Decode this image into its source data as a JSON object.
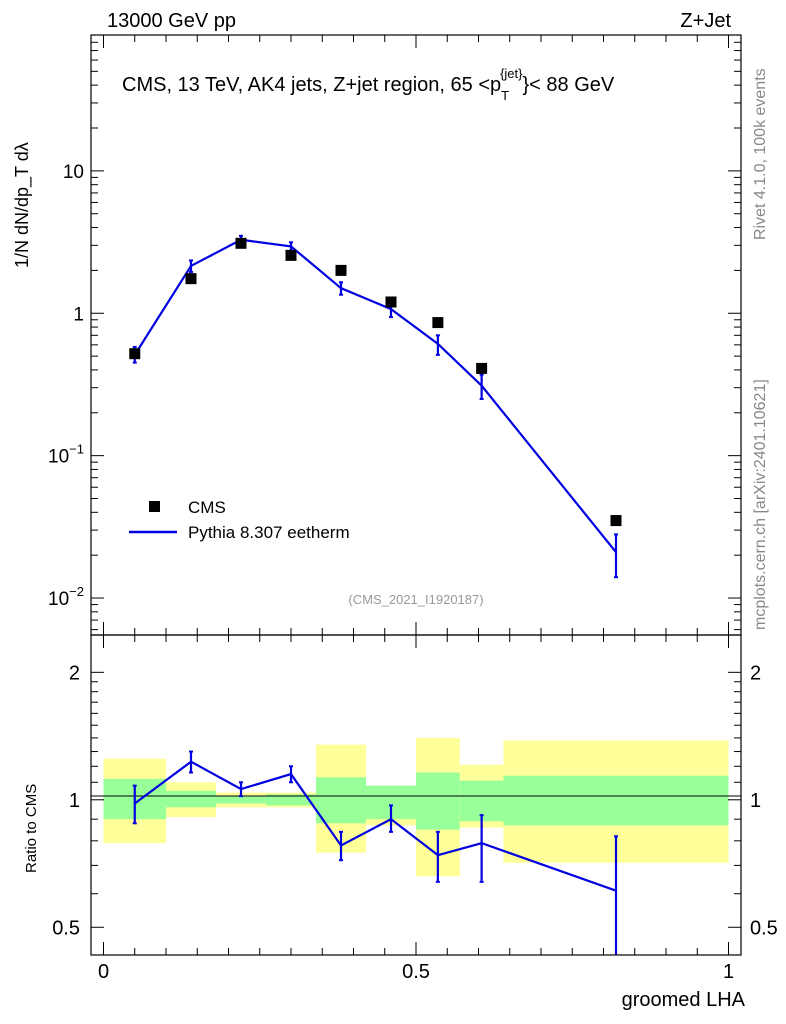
{
  "header": {
    "left": "13000 GeV pp",
    "right": "Z+Jet"
  },
  "main_plot": {
    "title": "CMS, 13 TeV, AK4 jets, Z+jet region, 65 <p",
    "title_sup": "{jet}",
    "title_sub": "T",
    "title_end": "}< 88 GeV",
    "ylabel": "1/N dN/dp_T dλ",
    "y_ticks": [
      {
        "base": "10",
        "exp": "−2",
        "v": 0.01
      },
      {
        "base": "10",
        "exp": "−1",
        "v": 0.1
      },
      {
        "base": "1",
        "exp": "",
        "v": 1
      },
      {
        "base": "10",
        "exp": "",
        "v": 10
      }
    ],
    "watermark": "(CMS_2021_I1920187)"
  },
  "legend": {
    "data_label": "CMS",
    "mc_label": "Pythia 8.307 eetherm"
  },
  "side_labels": {
    "top": "Rivet 4.1.0,  100k events",
    "bottom": "mcplots.cern.ch [arXiv:2401.10621]"
  },
  "ratio_plot": {
    "ylabel": "Ratio to CMS",
    "y_ticks": [
      "0.5",
      "1",
      "2"
    ],
    "x_ticks": [
      "0",
      "0.5",
      "1"
    ],
    "xlabel": "groomed LHA"
  },
  "colors": {
    "mc": "#0000e0",
    "band_inner": "#99ff99",
    "band_outer": "#ffff99",
    "data": "#000000"
  },
  "chart_data": {
    "type": "line",
    "title": "CMS, 13 TeV, AK4 jets, Z+jet region, 65 < pT jet < 88 GeV",
    "xlabel": "groomed LHA",
    "ylabel": "1/N dN/dpT dλ",
    "xlim": [
      -0.02,
      1.02
    ],
    "ylim": [
      0.0055,
      90
    ],
    "yscale": "log",
    "bins": [
      [
        0.0,
        0.1
      ],
      [
        0.1,
        0.18
      ],
      [
        0.18,
        0.26
      ],
      [
        0.26,
        0.34
      ],
      [
        0.34,
        0.42
      ],
      [
        0.42,
        0.5
      ],
      [
        0.5,
        0.57
      ],
      [
        0.57,
        0.64
      ],
      [
        0.64,
        1.0
      ]
    ],
    "series": [
      {
        "name": "CMS",
        "x": [
          0.05,
          0.14,
          0.22,
          0.3,
          0.38,
          0.46,
          0.535,
          0.605,
          0.82
        ],
        "values": [
          0.52,
          1.75,
          3.1,
          2.55,
          2.0,
          1.2,
          0.86,
          0.41,
          0.035
        ]
      },
      {
        "name": "Pythia 8.307 eetherm",
        "x": [
          0.05,
          0.14,
          0.22,
          0.3,
          0.38,
          0.46,
          0.535,
          0.605,
          0.82
        ],
        "values": [
          0.51,
          2.15,
          3.28,
          2.95,
          1.5,
          1.07,
          0.61,
          0.31,
          0.021
        ],
        "err_lo": [
          0.45,
          1.95,
          3.05,
          2.75,
          1.35,
          0.94,
          0.51,
          0.25,
          0.014
        ],
        "err_hi": [
          0.58,
          2.35,
          3.5,
          3.15,
          1.65,
          1.2,
          0.7,
          0.37,
          0.028
        ]
      }
    ],
    "ratio": {
      "ylim": [
        0.43,
        2.45
      ],
      "mc": [
        0.98,
        1.23,
        1.06,
        1.15,
        0.78,
        0.9,
        0.74,
        0.79,
        0.61
      ],
      "mc_lo": [
        0.88,
        1.16,
        1.02,
        1.1,
        0.72,
        0.84,
        0.64,
        0.64,
        0.43
      ],
      "mc_hi": [
        1.08,
        1.3,
        1.1,
        1.2,
        0.84,
        0.97,
        0.84,
        0.92,
        0.82
      ],
      "band_inner": [
        [
          0.9,
          1.12
        ],
        [
          0.96,
          1.05
        ],
        [
          0.98,
          1.02
        ],
        [
          0.97,
          1.03
        ],
        [
          0.88,
          1.13
        ],
        [
          0.9,
          1.08
        ],
        [
          0.85,
          1.16
        ],
        [
          0.89,
          1.11
        ],
        [
          0.87,
          1.14
        ]
      ],
      "band_outer": [
        [
          0.79,
          1.25
        ],
        [
          0.91,
          1.1
        ],
        [
          0.96,
          1.04
        ],
        [
          0.96,
          1.04
        ],
        [
          0.75,
          1.35
        ],
        [
          0.87,
          1.08
        ],
        [
          0.66,
          1.4
        ],
        [
          0.86,
          1.21
        ],
        [
          0.71,
          1.38
        ]
      ]
    }
  }
}
